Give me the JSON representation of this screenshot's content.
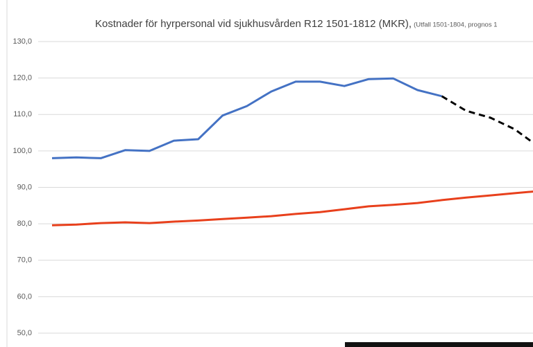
{
  "chart_data": {
    "type": "line",
    "title": "Kostnader för hyrpersonal vid sjukhusvården R12 1501-1812 (MKR),",
    "subtitle": "(Utfall 1501-1804, prognos 1",
    "categories": [
      null,
      null,
      null,
      null,
      null,
      null,
      null,
      null,
      null,
      null,
      null,
      null,
      null,
      null,
      null,
      null,
      null,
      null,
      null,
      null,
      null
    ],
    "series": [
      {
        "color": "#4472c4",
        "style": "solid",
        "values": [
          98.0,
          98.2,
          98.0,
          100.2,
          100.0,
          102.8,
          103.2,
          109.7,
          112.3,
          116.3,
          119.0,
          119.0,
          117.8,
          119.7,
          119.9,
          116.7,
          115.0,
          null,
          null,
          null,
          null
        ]
      },
      {
        "color": "#000000",
        "style": "dashed",
        "values": [
          null,
          null,
          null,
          null,
          null,
          null,
          null,
          null,
          null,
          null,
          null,
          null,
          null,
          null,
          null,
          null,
          115.0,
          111.0,
          109.1,
          105.9,
          101.0
        ]
      },
      {
        "color": "#e8401c",
        "style": "solid",
        "values": [
          79.6,
          79.8,
          80.2,
          80.4,
          80.2,
          80.6,
          80.9,
          81.3,
          81.7,
          82.1,
          82.7,
          83.2,
          84.0,
          84.8,
          85.2,
          85.7,
          86.5,
          87.2,
          87.8,
          88.4,
          89.0
        ]
      }
    ],
    "ylim": [
      50,
      130
    ],
    "yticks": [
      {
        "value": 50,
        "label": "50,0"
      },
      {
        "value": 60,
        "label": "60,0"
      },
      {
        "value": 70,
        "label": "70,0"
      },
      {
        "value": 80,
        "label": "80,0"
      },
      {
        "value": 90,
        "label": "90,0"
      },
      {
        "value": 100,
        "label": "100,0"
      },
      {
        "value": 110,
        "label": "110,0"
      },
      {
        "value": 120,
        "label": "120,0"
      },
      {
        "value": 130,
        "label": "130,0"
      }
    ],
    "grid": true
  }
}
